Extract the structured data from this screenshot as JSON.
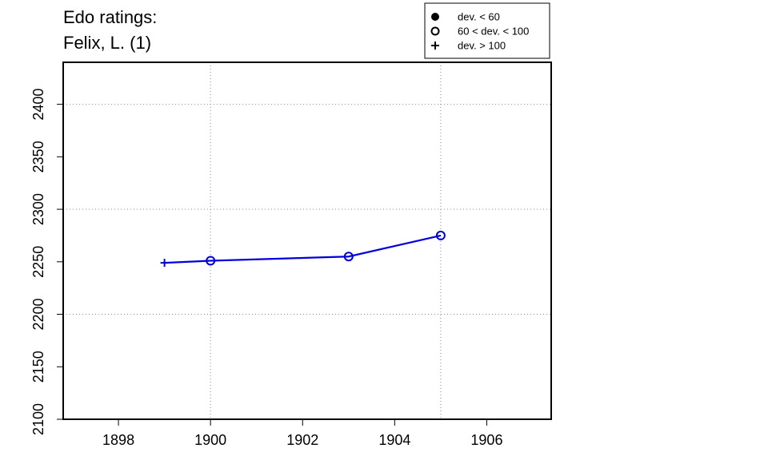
{
  "chart_data": {
    "type": "line",
    "title_lines": [
      "Edo ratings:",
      "Felix, L. (1)"
    ],
    "xlabel": "",
    "ylabel": "",
    "xlim": [
      1896.8,
      1907.4
    ],
    "ylim": [
      2100,
      2440
    ],
    "x_ticks": [
      1898,
      1900,
      1902,
      1904,
      1906
    ],
    "y_ticks": [
      2100,
      2150,
      2200,
      2250,
      2300,
      2350,
      2400
    ],
    "x_grid": [
      1900,
      1905
    ],
    "y_grid": [
      2200,
      2300,
      2400
    ],
    "grid": true,
    "series": [
      {
        "color": "#0000dd",
        "points": [
          {
            "x": 1899,
            "y": 2249,
            "marker": "plus"
          },
          {
            "x": 1900,
            "y": 2251,
            "marker": "open-circle"
          },
          {
            "x": 1903,
            "y": 2255,
            "marker": "open-circle"
          },
          {
            "x": 1905,
            "y": 2275,
            "marker": "open-circle"
          }
        ]
      }
    ],
    "legend": {
      "position": "top-right",
      "entries": [
        {
          "label": "dev. < 60",
          "marker": "filled-circle"
        },
        {
          "label": "60 < dev. < 100",
          "marker": "open-circle"
        },
        {
          "label": "dev. > 100",
          "marker": "plus"
        }
      ]
    }
  }
}
